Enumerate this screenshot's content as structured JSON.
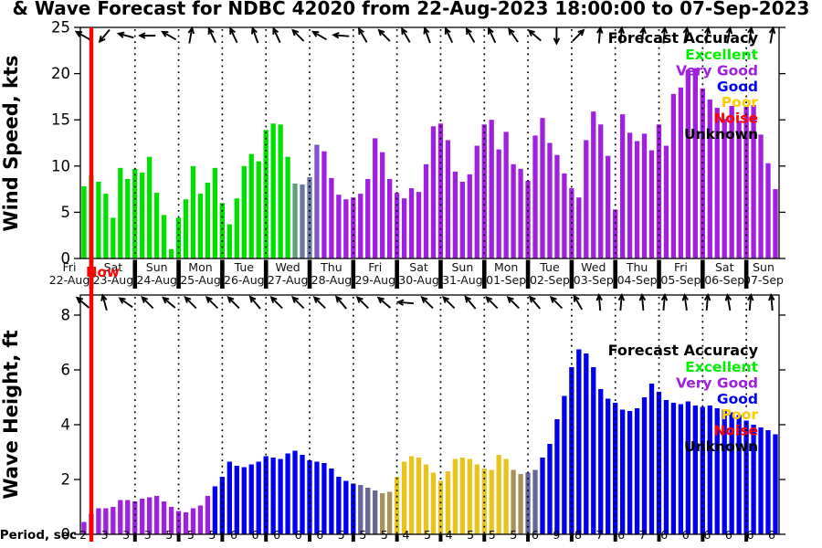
{
  "title": "& Wave Forecast for NDBC 42020 from 22-Aug-2023 18:00:00 to 07-Sep-2023",
  "now_label": "Now",
  "now_line_color": "#FF0000",
  "wind_axis": {
    "label": "Wind Speed, kts",
    "ticks": [
      0,
      5,
      10,
      15,
      20,
      25
    ],
    "max": 25
  },
  "wave_axis": {
    "label": "Wave Height, ft",
    "ticks": [
      0,
      2,
      4,
      6,
      8
    ],
    "max": 8.75
  },
  "x_axis": {
    "day_names": [
      "Fri",
      "Sat",
      "Sun",
      "Mon",
      "Tue",
      "Wed",
      "Thu",
      "Fri",
      "Sat",
      "Sun",
      "Mon",
      "Tue",
      "Wed",
      "Thu",
      "Fri",
      "Sat",
      "Sun"
    ],
    "dates": [
      "22-Aug",
      "23-Aug",
      "24-Aug",
      "25-Aug",
      "26-Aug",
      "27-Aug",
      "28-Aug",
      "29-Aug",
      "30-Aug",
      "31-Aug",
      "01-Sep",
      "02-Sep",
      "03-Sep",
      "04-Sep",
      "05-Sep",
      "06-Sep",
      "07-Sep"
    ]
  },
  "period_axis": {
    "label": "Period, sec",
    "values": [
      2,
      3,
      3,
      3,
      5,
      5,
      5,
      6,
      6,
      6,
      6,
      6,
      5,
      5,
      5,
      4,
      5,
      4,
      5,
      5,
      5,
      6,
      9,
      8,
      7,
      6,
      7,
      6,
      6,
      6,
      6,
      6,
      6
    ]
  },
  "legend": {
    "title": "Forecast Accuracy",
    "entries": [
      {
        "label": "Excellent",
        "color": "#00EE00"
      },
      {
        "label": "Very Good",
        "color": "#A020E0"
      },
      {
        "label": "Good",
        "color": "#0000EE"
      },
      {
        "label": "Poor",
        "color": "#FFCC00"
      },
      {
        "label": "Noise",
        "color": "#FF0000"
      },
      {
        "label": "Unknown",
        "color": "#000000"
      }
    ]
  },
  "palette": {
    "excellent": "#00E000",
    "very_good": "#A020E0",
    "good": "#0000EE",
    "poor": "#E8C41A",
    "noise": "#FF0000",
    "unknown": "#808080",
    "green_gray": "#5FA07A",
    "blue_gray": "#6878A0",
    "purple_gray": "#8055C5",
    "slate": "#666699",
    "tan": "#A8925A"
  },
  "chart_data": [
    {
      "type": "bar",
      "name": "wind_speed",
      "units": "kts",
      "ylim": [
        0,
        25
      ],
      "values": [
        7.8,
        9.0,
        8.3,
        7.0,
        4.4,
        9.8,
        8.6,
        9.7,
        9.3,
        11.0,
        7.1,
        4.7,
        1.0,
        4.4,
        6.4,
        10.0,
        7.0,
        8.2,
        9.8,
        6.0,
        3.7,
        6.5,
        10.0,
        11.3,
        10.5,
        13.9,
        14.6,
        14.5,
        11.0,
        8.1,
        8.0,
        8.8,
        12.3,
        11.6,
        8.7,
        6.9,
        6.4,
        6.6,
        7.0,
        8.6,
        13.0,
        11.5,
        8.6,
        7.1,
        6.5,
        7.6,
        7.2,
        10.2,
        14.3,
        14.6,
        12.8,
        9.4,
        8.3,
        9.1,
        12.2,
        14.5,
        15.0,
        11.8,
        13.7,
        10.2,
        9.7,
        8.4,
        13.3,
        15.2,
        12.5,
        11.2,
        9.2,
        7.6,
        6.6,
        12.8,
        15.9,
        14.5,
        11.1,
        5.3,
        15.6,
        13.6,
        12.7,
        13.5,
        11.7,
        14.5,
        12.2,
        17.8,
        18.5,
        20.4,
        20.6,
        18.4,
        17.2,
        16.3,
        15.1,
        16.5,
        14.9,
        16.4,
        16.6,
        13.4,
        10.3,
        7.5
      ],
      "color_segments": [
        {
          "color": "excellent",
          "count": 29
        },
        {
          "color": "green_gray",
          "count": 1
        },
        {
          "color": "blue_gray",
          "count": 2
        },
        {
          "color": "purple_gray",
          "count": 1
        },
        {
          "color": "very_good",
          "count": 63
        }
      ],
      "arrows_deg": [
        -60,
        -140,
        -75,
        -90,
        -60,
        10,
        -25,
        -25,
        -20,
        -25,
        -45,
        -60,
        -85,
        -30,
        -45,
        -30,
        -20,
        -25,
        -30,
        -25,
        -35,
        -50,
        180,
        45,
        5,
        5,
        8,
        5,
        10,
        8,
        10,
        8,
        10
      ]
    },
    {
      "type": "bar",
      "name": "wave_height",
      "units": "ft",
      "ylim": [
        0,
        8.75
      ],
      "values": [
        0.45,
        0.75,
        0.95,
        0.95,
        1.0,
        1.25,
        1.25,
        1.2,
        1.3,
        1.35,
        1.4,
        1.2,
        1.0,
        0.85,
        0.8,
        0.95,
        1.05,
        1.4,
        1.75,
        2.1,
        2.65,
        2.5,
        2.45,
        2.55,
        2.65,
        2.85,
        2.8,
        2.75,
        2.95,
        3.05,
        2.9,
        2.7,
        2.65,
        2.6,
        2.4,
        2.1,
        1.95,
        1.85,
        1.8,
        1.7,
        1.6,
        1.5,
        1.55,
        2.1,
        2.65,
        2.85,
        2.8,
        2.55,
        2.25,
        1.95,
        2.3,
        2.75,
        2.8,
        2.75,
        2.55,
        2.4,
        2.35,
        2.9,
        2.75,
        2.35,
        2.2,
        2.25,
        2.35,
        2.8,
        3.3,
        4.2,
        5.05,
        6.1,
        6.75,
        6.6,
        6.1,
        5.3,
        4.95,
        4.8,
        4.55,
        4.5,
        4.6,
        5.0,
        5.5,
        5.2,
        4.9,
        4.8,
        4.75,
        4.85,
        4.7,
        4.65,
        4.7,
        4.6,
        4.55,
        4.45,
        4.35,
        4.15,
        4.0,
        3.9,
        3.8,
        3.65
      ],
      "color_segments": [
        {
          "color": "very_good",
          "count": 18
        },
        {
          "color": "good",
          "count": 20
        },
        {
          "color": "slate",
          "count": 3
        },
        {
          "color": "tan",
          "count": 2
        },
        {
          "color": "poor",
          "count": 16
        },
        {
          "color": "tan",
          "count": 2
        },
        {
          "color": "slate",
          "count": 2
        },
        {
          "color": "good",
          "count": 33
        }
      ],
      "arrows_deg": [
        -50,
        -15,
        -55,
        -45,
        -50,
        -45,
        -45,
        -45,
        -40,
        -45,
        -45,
        -45,
        -40,
        -45,
        -50,
        -85,
        -45,
        -45,
        -40,
        -45,
        -45,
        -40,
        -45,
        -30,
        -5,
        5,
        -5,
        5,
        -8,
        5,
        -10,
        5,
        -5
      ]
    }
  ]
}
